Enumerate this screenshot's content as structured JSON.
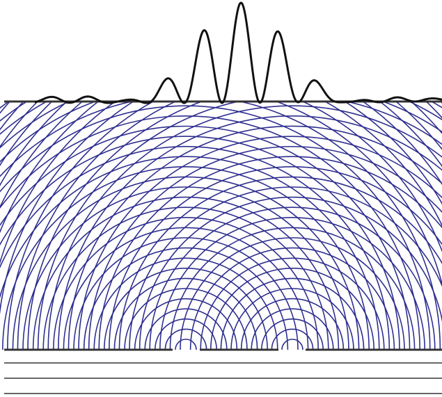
{
  "diagram": {
    "type": "double-slit interference",
    "slits": 2,
    "wavefront_count": 38,
    "incident_plane_waves": 3,
    "intensity_peaks_visible": 9,
    "colors": {
      "background": "#ffffff",
      "wavefronts": "#2e2e8f",
      "barrier": "#333333",
      "screen": "#333333",
      "intensity_curve": "#111111",
      "incident_waves": "#333333"
    }
  }
}
